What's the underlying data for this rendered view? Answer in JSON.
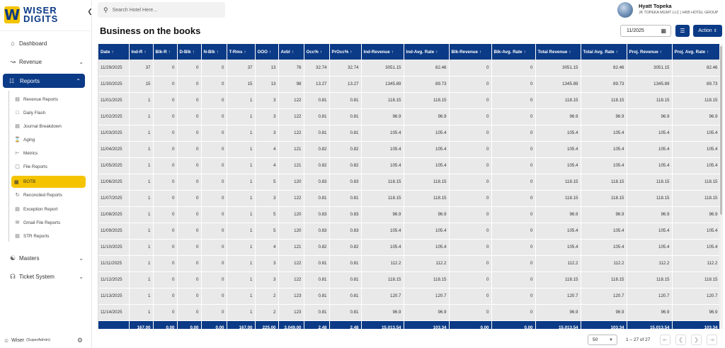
{
  "logo": {
    "mark": "W",
    "line1": "WISER",
    "line2": "DIGITS"
  },
  "sidebar": {
    "collapse_icon": "chevron-left-icon",
    "items": [
      {
        "label": "Dashboard",
        "icon": "home-icon"
      },
      {
        "label": "Revenue",
        "icon": "chart-icon"
      },
      {
        "label": "Reports",
        "icon": "report-icon"
      },
      {
        "label": "Masters",
        "icon": "masters-icon"
      },
      {
        "label": "Ticket System",
        "icon": "headset-icon"
      }
    ],
    "sub_items": [
      {
        "label": "Revenue Reports",
        "icon": "chart-icon"
      },
      {
        "label": "Daily Flash",
        "icon": "flash-icon"
      },
      {
        "label": "Journal Breakdown",
        "icon": "journal-icon"
      },
      {
        "label": "Aging",
        "icon": "hourglass-icon"
      },
      {
        "label": "Metrics",
        "icon": "metrics-icon"
      },
      {
        "label": "File Reports",
        "icon": "file-icon"
      },
      {
        "label": "BOTB",
        "icon": "calendar-icon"
      },
      {
        "label": "Reconciled Reports",
        "icon": "reconcile-icon"
      },
      {
        "label": "Exception Report",
        "icon": "warning-icon"
      },
      {
        "label": "Gmail File Reports",
        "icon": "mail-icon"
      },
      {
        "label": "STR Reports",
        "icon": "document-icon"
      }
    ],
    "user": {
      "name": "Wiser",
      "role": "(SuperAdmin)"
    }
  },
  "topbar": {
    "search_placeholder": "Search Hotel Here...",
    "hotel_name": "Hyatt Topeka",
    "hotel_sub": "JK TOPEKA MGMT LLC | HKB HOTEL GROUP"
  },
  "page": {
    "title": "Business on the books",
    "date_value": "11/2025",
    "action_label": "Action"
  },
  "table": {
    "columns": [
      "Date",
      "Ind-R",
      "Blk-R",
      "D-Blk",
      "N-Blk",
      "T-Rms",
      "OOO",
      "Avbl",
      "Occ%",
      "PrOcc%",
      "Ind-Revenue",
      "Ind-Avg. Rate",
      "Blk-Revenue",
      "Blk-Avg. Rate",
      "Total Revenue",
      "Total Avg. Rate",
      "Proj. Revenue",
      "Proj. Avg. Rate"
    ],
    "rows": [
      [
        "11/29/2025",
        "37",
        "0",
        "0",
        "0",
        "37",
        "13",
        "76",
        "32.74",
        "32.74",
        "3051.15",
        "82.46",
        "0",
        "0",
        "3051.15",
        "82.46",
        "3051.15",
        "82.46"
      ],
      [
        "11/30/2025",
        "15",
        "0",
        "0",
        "0",
        "15",
        "13",
        "98",
        "13.27",
        "13.27",
        "1345.89",
        "89.73",
        "0",
        "0",
        "1345.89",
        "89.73",
        "1345.89",
        "89.73"
      ],
      [
        "11/01/2025",
        "1",
        "0",
        "0",
        "0",
        "1",
        "3",
        "122",
        "0.81",
        "0.81",
        "118.15",
        "118.15",
        "0",
        "0",
        "118.15",
        "118.15",
        "118.15",
        "118.15"
      ],
      [
        "11/02/2025",
        "1",
        "0",
        "0",
        "0",
        "1",
        "3",
        "122",
        "0.81",
        "0.81",
        "96.9",
        "96.9",
        "0",
        "0",
        "96.9",
        "96.9",
        "96.9",
        "96.9"
      ],
      [
        "11/03/2025",
        "1",
        "0",
        "0",
        "0",
        "1",
        "3",
        "122",
        "0.81",
        "0.81",
        "105.4",
        "105.4",
        "0",
        "0",
        "105.4",
        "105.4",
        "105.4",
        "105.4"
      ],
      [
        "11/04/2025",
        "1",
        "0",
        "0",
        "0",
        "1",
        "4",
        "121",
        "0.82",
        "0.82",
        "105.4",
        "105.4",
        "0",
        "0",
        "105.4",
        "105.4",
        "105.4",
        "105.4"
      ],
      [
        "11/05/2025",
        "1",
        "0",
        "0",
        "0",
        "1",
        "4",
        "121",
        "0.82",
        "0.82",
        "105.4",
        "105.4",
        "0",
        "0",
        "105.4",
        "105.4",
        "105.4",
        "105.4"
      ],
      [
        "11/06/2025",
        "1",
        "0",
        "0",
        "0",
        "1",
        "5",
        "120",
        "0.83",
        "0.83",
        "118.15",
        "118.15",
        "0",
        "0",
        "118.15",
        "118.15",
        "118.15",
        "118.15"
      ],
      [
        "11/07/2025",
        "1",
        "0",
        "0",
        "0",
        "1",
        "3",
        "122",
        "0.81",
        "0.81",
        "118.15",
        "118.15",
        "0",
        "0",
        "118.15",
        "118.15",
        "118.15",
        "118.15"
      ],
      [
        "11/08/2025",
        "1",
        "0",
        "0",
        "0",
        "1",
        "5",
        "120",
        "0.83",
        "0.83",
        "96.9",
        "96.9",
        "0",
        "0",
        "96.9",
        "96.9",
        "96.9",
        "96.9"
      ],
      [
        "11/09/2025",
        "1",
        "0",
        "0",
        "0",
        "1",
        "5",
        "120",
        "0.83",
        "0.83",
        "105.4",
        "105.4",
        "0",
        "0",
        "105.4",
        "105.4",
        "105.4",
        "105.4"
      ],
      [
        "11/10/2025",
        "1",
        "0",
        "0",
        "0",
        "1",
        "4",
        "121",
        "0.82",
        "0.82",
        "105.4",
        "105.4",
        "0",
        "0",
        "105.4",
        "105.4",
        "105.4",
        "105.4"
      ],
      [
        "11/11/2025",
        "1",
        "0",
        "0",
        "0",
        "1",
        "3",
        "122",
        "0.81",
        "0.81",
        "112.2",
        "112.2",
        "0",
        "0",
        "112.2",
        "112.2",
        "112.2",
        "112.2"
      ],
      [
        "11/12/2025",
        "1",
        "0",
        "0",
        "0",
        "1",
        "3",
        "122",
        "0.81",
        "0.81",
        "118.15",
        "118.15",
        "0",
        "0",
        "118.15",
        "118.15",
        "118.15",
        "118.15"
      ],
      [
        "11/13/2025",
        "1",
        "0",
        "0",
        "0",
        "1",
        "2",
        "123",
        "0.81",
        "0.81",
        "120.7",
        "120.7",
        "0",
        "0",
        "120.7",
        "120.7",
        "120.7",
        "120.7"
      ],
      [
        "11/14/2025",
        "1",
        "0",
        "0",
        "0",
        "1",
        "2",
        "123",
        "0.81",
        "0.81",
        "96.9",
        "96.9",
        "0",
        "0",
        "96.9",
        "96.9",
        "96.9",
        "96.9"
      ]
    ],
    "totals": [
      "",
      "167.00",
      "0.00",
      "0.00",
      "0.00",
      "167.00",
      "225.00",
      "3,049.00",
      "2.48",
      "2.48",
      "15,013.54",
      "103.34",
      "0.00",
      "0.00",
      "15,013.54",
      "103.34",
      "15,013.54",
      "103.34"
    ]
  },
  "pagination": {
    "rows_per_page": "50",
    "range": "1 – 27 of 27"
  },
  "colors": {
    "primary": "#0b3a86",
    "accent": "#f5c400",
    "cell_bg": "#e9e9e9"
  }
}
